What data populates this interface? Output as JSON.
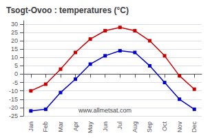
{
  "chart_data": {
    "type": "line",
    "title": "Tsogt-Ovoo : temperatures (°C)",
    "categories": [
      "Jan",
      "Feb",
      "Mar",
      "Apr",
      "May",
      "Jun",
      "Jul",
      "Aug",
      "Sep",
      "Oct",
      "Nov",
      "Dec"
    ],
    "series": [
      {
        "color": "#cc0000",
        "marker": "square",
        "values": [
          -10,
          -6,
          3,
          13,
          21,
          26,
          28,
          26,
          20,
          11,
          -1,
          -9
        ]
      },
      {
        "color": "#0000cc",
        "marker": "square",
        "values": [
          -22,
          -21,
          -11,
          -3,
          6,
          11,
          14,
          13,
          5,
          -5,
          -15,
          -21
        ]
      }
    ],
    "ylim": [
      -25,
      32
    ],
    "yticks": [
      -25,
      -20,
      -15,
      -10,
      -5,
      0,
      5,
      10,
      15,
      20,
      25,
      30
    ],
    "grid": true,
    "annotation": "www.allmetsat.com"
  }
}
